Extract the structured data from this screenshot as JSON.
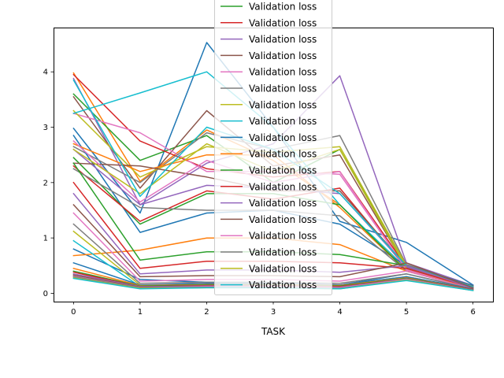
{
  "chart_data": {
    "type": "line",
    "xlabel": "TASK",
    "ylabel": "",
    "x": [
      0,
      1,
      2,
      3,
      4,
      5,
      6
    ],
    "xlim": [
      -0.3,
      6.3
    ],
    "ylim": [
      -0.15,
      4.8
    ],
    "x_ticks": [
      0,
      1,
      2,
      3,
      4,
      5,
      6
    ],
    "y_ticks": [
      0,
      1,
      2,
      3,
      4
    ],
    "grid": false,
    "legend_placement": "upper-center",
    "series": [
      {
        "name": "Validation loss",
        "color": "#1f77b4",
        "values": [
          2.98,
          1.45,
          4.53,
          3.0,
          1.3,
          0.92,
          0.15
        ]
      },
      {
        "name": "Validation loss",
        "color": "#ff7f0e",
        "values": [
          3.98,
          2.02,
          2.95,
          2.4,
          1.6,
          0.42,
          0.13
        ]
      },
      {
        "name": "Validation loss",
        "color": "#2ca02c",
        "values": [
          3.6,
          2.4,
          2.85,
          2.0,
          2.6,
          0.5,
          0.11
        ]
      },
      {
        "name": "Validation loss",
        "color": "#d62728",
        "values": [
          3.95,
          2.75,
          2.25,
          2.1,
          2.2,
          0.48,
          0.12
        ]
      },
      {
        "name": "Validation loss",
        "color": "#9467bd",
        "values": [
          3.88,
          1.6,
          2.35,
          2.7,
          3.93,
          0.55,
          0.14
        ]
      },
      {
        "name": "Validation loss",
        "color": "#8c564b",
        "values": [
          3.55,
          1.9,
          3.3,
          2.3,
          2.5,
          0.46,
          0.1
        ]
      },
      {
        "name": "Validation loss",
        "color": "#e377c2",
        "values": [
          3.25,
          2.9,
          2.2,
          2.2,
          2.15,
          0.44,
          0.09
        ]
      },
      {
        "name": "Validation loss",
        "color": "#7f7f7f",
        "values": [
          2.65,
          2.0,
          2.9,
          2.6,
          2.85,
          0.52,
          0.13
        ]
      },
      {
        "name": "Validation loss",
        "color": "#bcbd22",
        "values": [
          3.3,
          2.1,
          2.65,
          2.55,
          2.65,
          0.5,
          0.12
        ]
      },
      {
        "name": "Validation loss",
        "color": "#17becf",
        "values": [
          3.25,
          3.62,
          4.0,
          3.0,
          1.6,
          0.45,
          0.11
        ]
      },
      {
        "name": "Validation loss",
        "color": "#1f77b4",
        "values": [
          2.85,
          1.1,
          1.45,
          1.5,
          1.25,
          0.5,
          0.14
        ]
      },
      {
        "name": "Validation loss",
        "color": "#ff7f0e",
        "values": [
          2.7,
          2.2,
          2.5,
          2.5,
          1.55,
          0.4,
          0.12
        ]
      },
      {
        "name": "Validation loss",
        "color": "#2ca02c",
        "values": [
          2.45,
          1.25,
          1.8,
          1.8,
          1.6,
          0.4,
          0.11
        ]
      },
      {
        "name": "Validation loss",
        "color": "#d62728",
        "values": [
          2.3,
          1.3,
          1.85,
          1.7,
          1.9,
          0.45,
          0.1
        ]
      },
      {
        "name": "Validation loss",
        "color": "#9467bd",
        "values": [
          2.6,
          1.6,
          1.95,
          1.9,
          1.8,
          0.48,
          0.12
        ]
      },
      {
        "name": "Validation loss",
        "color": "#8c564b",
        "values": [
          2.35,
          2.3,
          2.1,
          1.85,
          1.85,
          0.5,
          0.13
        ]
      },
      {
        "name": "Validation loss",
        "color": "#e377c2",
        "values": [
          2.75,
          1.65,
          2.4,
          2.0,
          2.2,
          0.42,
          0.1
        ]
      },
      {
        "name": "Validation loss",
        "color": "#7f7f7f",
        "values": [
          2.25,
          1.55,
          1.5,
          1.5,
          1.4,
          0.4,
          0.09
        ]
      },
      {
        "name": "Validation loss",
        "color": "#bcbd22",
        "values": [
          2.6,
          1.8,
          2.7,
          2.2,
          2.6,
          0.45,
          0.1
        ]
      },
      {
        "name": "Validation loss",
        "color": "#17becf",
        "values": [
          3.85,
          1.75,
          3.0,
          2.6,
          1.8,
          0.5,
          0.12
        ]
      },
      {
        "name": "Validation loss",
        "color": "#1f77b4",
        "values": [
          0.8,
          0.25,
          0.2,
          0.2,
          0.15,
          0.35,
          0.08
        ]
      },
      {
        "name": "Validation loss",
        "color": "#ff7f0e",
        "values": [
          0.68,
          0.78,
          1.0,
          1.0,
          0.88,
          0.4,
          0.09
        ]
      },
      {
        "name": "Validation loss",
        "color": "#2ca02c",
        "values": [
          2.35,
          0.6,
          0.75,
          0.75,
          0.7,
          0.5,
          0.1
        ]
      },
      {
        "name": "Validation loss",
        "color": "#d62728",
        "values": [
          2.0,
          0.45,
          0.58,
          0.58,
          0.55,
          0.45,
          0.1
        ]
      },
      {
        "name": "Validation loss",
        "color": "#9467bd",
        "values": [
          1.8,
          0.35,
          0.42,
          0.42,
          0.38,
          0.5,
          0.09
        ]
      },
      {
        "name": "Validation loss",
        "color": "#8c564b",
        "values": [
          1.6,
          0.3,
          0.32,
          0.32,
          0.3,
          0.55,
          0.1
        ]
      },
      {
        "name": "Validation loss",
        "color": "#e377c2",
        "values": [
          1.45,
          0.22,
          0.25,
          0.25,
          0.22,
          0.4,
          0.08
        ]
      },
      {
        "name": "Validation loss",
        "color": "#7f7f7f",
        "values": [
          1.25,
          0.18,
          0.2,
          0.2,
          0.18,
          0.35,
          0.08
        ]
      },
      {
        "name": "Validation loss",
        "color": "#bcbd22",
        "values": [
          1.12,
          0.15,
          0.15,
          0.15,
          0.15,
          0.3,
          0.07
        ]
      },
      {
        "name": "Validation loss",
        "color": "#17becf",
        "values": [
          0.95,
          0.12,
          0.13,
          0.13,
          0.12,
          0.28,
          0.07
        ]
      },
      {
        "name": "Validation loss",
        "color": "#1f77b4",
        "values": [
          0.55,
          0.15,
          0.18,
          0.18,
          0.15,
          0.3,
          0.08
        ]
      },
      {
        "name": "Validation loss",
        "color": "#ff7f0e",
        "values": [
          0.45,
          0.14,
          0.16,
          0.16,
          0.14,
          0.28,
          0.07
        ]
      },
      {
        "name": "Validation loss",
        "color": "#2ca02c",
        "values": [
          0.4,
          0.13,
          0.15,
          0.15,
          0.13,
          0.27,
          0.07
        ]
      },
      {
        "name": "Validation loss",
        "color": "#d62728",
        "values": [
          0.38,
          0.12,
          0.14,
          0.14,
          0.12,
          0.26,
          0.07
        ]
      },
      {
        "name": "Validation loss",
        "color": "#9467bd",
        "values": [
          0.35,
          0.12,
          0.13,
          0.13,
          0.11,
          0.26,
          0.06
        ]
      },
      {
        "name": "Validation loss",
        "color": "#8c564b",
        "values": [
          0.33,
          0.11,
          0.12,
          0.12,
          0.1,
          0.25,
          0.06
        ]
      },
      {
        "name": "Validation loss",
        "color": "#e377c2",
        "values": [
          0.31,
          0.1,
          0.12,
          0.12,
          0.1,
          0.25,
          0.06
        ]
      },
      {
        "name": "Validation loss",
        "color": "#7f7f7f",
        "values": [
          0.3,
          0.1,
          0.11,
          0.11,
          0.09,
          0.24,
          0.06
        ]
      },
      {
        "name": "Validation loss",
        "color": "#bcbd22",
        "values": [
          0.28,
          0.09,
          0.1,
          0.1,
          0.08,
          0.24,
          0.05
        ]
      },
      {
        "name": "Validation loss",
        "color": "#17becf",
        "values": [
          0.27,
          0.08,
          0.1,
          0.1,
          0.08,
          0.23,
          0.05
        ]
      }
    ],
    "legend": {
      "entries": [
        {
          "label": "Validation loss",
          "color": "#2ca02c"
        },
        {
          "label": "Validation loss",
          "color": "#d62728"
        },
        {
          "label": "Validation loss",
          "color": "#9467bd"
        },
        {
          "label": "Validation loss",
          "color": "#8c564b"
        },
        {
          "label": "Validation loss",
          "color": "#e377c2"
        },
        {
          "label": "Validation loss",
          "color": "#7f7f7f"
        },
        {
          "label": "Validation loss",
          "color": "#bcbd22"
        },
        {
          "label": "Validation loss",
          "color": "#17becf"
        },
        {
          "label": "Validation loss",
          "color": "#1f77b4"
        },
        {
          "label": "Validation loss",
          "color": "#ff7f0e"
        },
        {
          "label": "Validation loss",
          "color": "#2ca02c"
        },
        {
          "label": "Validation loss",
          "color": "#d62728"
        },
        {
          "label": "Validation loss",
          "color": "#9467bd"
        },
        {
          "label": "Validation loss",
          "color": "#8c564b"
        },
        {
          "label": "Validation loss",
          "color": "#e377c2"
        },
        {
          "label": "Validation loss",
          "color": "#7f7f7f"
        },
        {
          "label": "Validation loss",
          "color": "#bcbd22"
        },
        {
          "label": "Validation loss",
          "color": "#17becf"
        }
      ]
    }
  }
}
